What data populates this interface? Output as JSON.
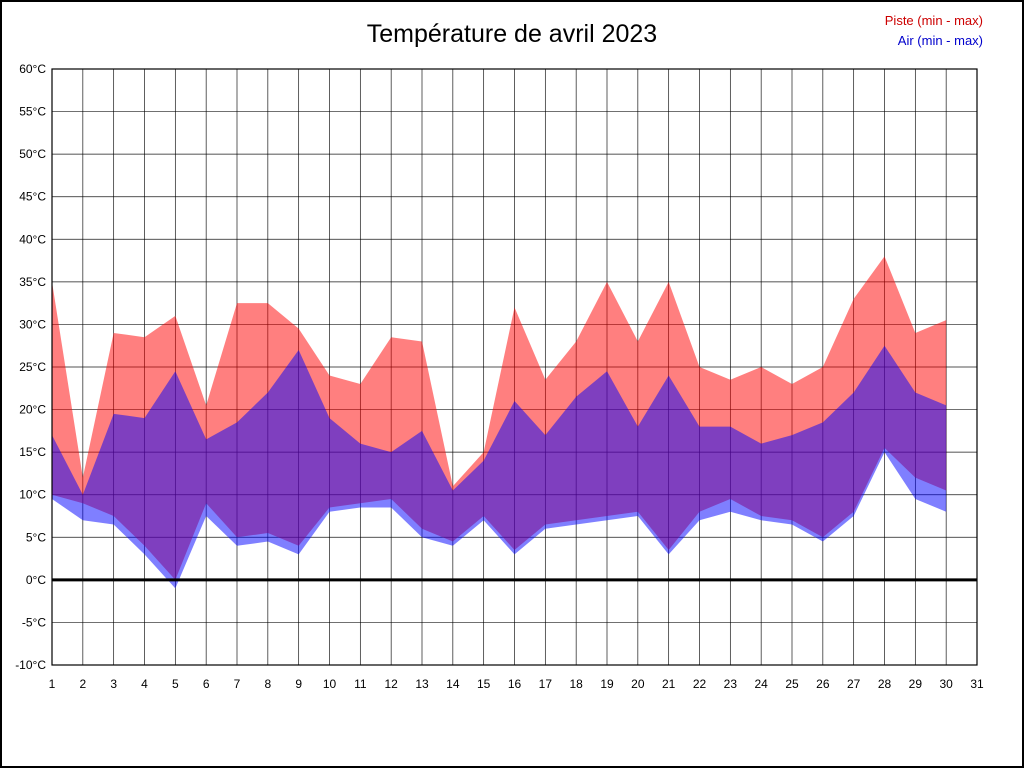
{
  "legend": [
    {
      "label": "Piste (min - max)",
      "color": "#cc0000"
    },
    {
      "label": "Air (min - max)",
      "color": "#0000cc"
    }
  ],
  "chart_data": {
    "type": "area",
    "title": "Température de avril 2023",
    "xlabel": "",
    "ylabel": "",
    "grid": true,
    "legend_position": "top-right",
    "xlim": [
      1,
      31
    ],
    "ylim": [
      -10,
      60
    ],
    "zero_line_value": 0,
    "x": [
      1,
      2,
      3,
      4,
      5,
      6,
      7,
      8,
      9,
      10,
      11,
      12,
      13,
      14,
      15,
      16,
      17,
      18,
      19,
      20,
      21,
      22,
      23,
      24,
      25,
      26,
      27,
      28,
      29,
      30
    ],
    "series": [
      {
        "name": "Piste (min - max)",
        "color": "#ff0000",
        "opacity": 0.5,
        "max": [
          35,
          12,
          29,
          28.5,
          31,
          20.5,
          32.5,
          32.5,
          29.5,
          24,
          23,
          28.5,
          28,
          11,
          15,
          32,
          23.5,
          28,
          35,
          28,
          35,
          25,
          23.5,
          25,
          23,
          25,
          33,
          38,
          29,
          30.5
        ],
        "min": [
          10,
          9,
          7.5,
          4,
          0,
          9,
          5,
          5.5,
          4,
          8.5,
          9,
          9.5,
          6,
          4.5,
          7.5,
          3.5,
          6.5,
          7,
          7.5,
          8,
          3.5,
          8,
          9.5,
          7.5,
          7,
          5,
          8,
          15.5,
          12,
          10.5
        ]
      },
      {
        "name": "Air (min - max)",
        "color": "#0000ff",
        "opacity": 0.5,
        "max": [
          17,
          10,
          19.5,
          19,
          24.5,
          16.5,
          18.5,
          22,
          27,
          19,
          16,
          15,
          17.5,
          10.5,
          14,
          21,
          17,
          21.5,
          24.5,
          18,
          24,
          18,
          18,
          16,
          17,
          18.5,
          22,
          27.5,
          22,
          20.5
        ],
        "min": [
          9.5,
          7,
          6.5,
          3,
          -1,
          7.5,
          4,
          4.5,
          3,
          8,
          8.5,
          8.5,
          5,
          4,
          7,
          3,
          6,
          6.5,
          7,
          7.5,
          3,
          7,
          8,
          7,
          6.5,
          4.5,
          7.5,
          15,
          9.5,
          8
        ]
      }
    ],
    "ytick_values": [
      60,
      55,
      50,
      45,
      40,
      35,
      30,
      25,
      20,
      15,
      10,
      5,
      0,
      -5,
      -10
    ],
    "ytick_labels": [
      "60°C",
      "55°C",
      "50°C",
      "45°C",
      "40°C",
      "35°C",
      "30°C",
      "25°C",
      "20°C",
      "15°C",
      "10°C",
      "5°C",
      "0°C",
      "-5°C",
      "-10°C"
    ],
    "xtick_values": [
      1,
      2,
      3,
      4,
      5,
      6,
      7,
      8,
      9,
      10,
      11,
      12,
      13,
      14,
      15,
      16,
      17,
      18,
      19,
      20,
      21,
      22,
      23,
      24,
      25,
      26,
      27,
      28,
      29,
      30,
      31
    ],
    "xtick_labels": [
      "1",
      "2",
      "3",
      "4",
      "5",
      "6",
      "7",
      "8",
      "9",
      "10",
      "11",
      "12",
      "13",
      "14",
      "15",
      "16",
      "17",
      "18",
      "19",
      "20",
      "21",
      "22",
      "23",
      "24",
      "25",
      "26",
      "27",
      "28",
      "29",
      "30",
      "31"
    ]
  }
}
